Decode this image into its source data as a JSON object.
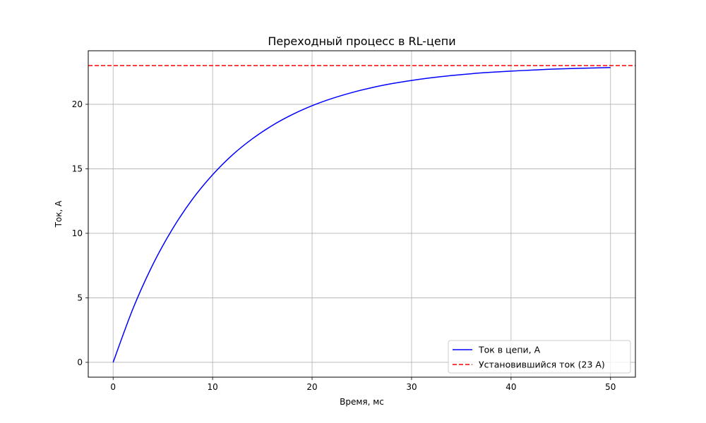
{
  "chart_data": {
    "type": "line",
    "title": "Переходный процесс в RL-цепи",
    "xlabel": "Время, мс",
    "ylabel": "Ток, А",
    "xlim": [
      -2.5,
      52.5
    ],
    "ylim": [
      -1.15,
      24.15
    ],
    "xticks": [
      0,
      10,
      20,
      30,
      40,
      50
    ],
    "yticks": [
      0,
      5,
      10,
      15,
      20
    ],
    "grid": true,
    "legend_position": "bottom-right",
    "series": [
      {
        "name": "Ток в цепи, А",
        "style": "solid",
        "color": "#0000ff",
        "x": [
          0,
          2,
          4,
          6,
          8,
          10,
          12,
          14,
          16,
          18,
          20,
          22,
          24,
          26,
          28,
          30,
          32,
          34,
          36,
          38,
          40,
          42,
          44,
          46,
          48,
          50
        ],
        "y": [
          0,
          4.17,
          7.59,
          10.38,
          12.67,
          14.54,
          16.08,
          17.33,
          18.36,
          19.2,
          19.89,
          20.45,
          20.91,
          21.29,
          21.6,
          21.85,
          22.06,
          22.23,
          22.37,
          22.48,
          22.57,
          22.65,
          22.72,
          22.77,
          22.81,
          22.85
        ]
      },
      {
        "name": "Установившийся ток (23 А)",
        "style": "dashed",
        "color": "#ff0000",
        "type": "hline",
        "y": 23
      }
    ]
  }
}
